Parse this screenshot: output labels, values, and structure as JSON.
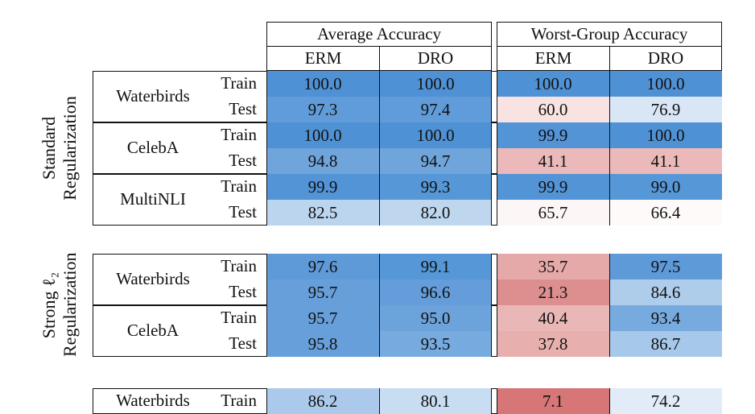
{
  "header": {
    "average_accuracy": "Average Accuracy",
    "worst_group_accuracy": "Worst-Group Accuracy",
    "erm": "ERM",
    "dro": "DRO"
  },
  "groups": [
    {
      "label_line1": "Standard",
      "label_line2": "Regularization",
      "datasets": [
        {
          "name": "Waterbirds",
          "rows": [
            {
              "split": "Train",
              "values": [
                "100.0",
                "100.0",
                "100.0",
                "100.0"
              ],
              "colors": [
                "#4f91d5",
                "#4f91d5",
                "#4f91d5",
                "#4f91d5"
              ]
            },
            {
              "split": "Test",
              "values": [
                "97.3",
                "97.4",
                "60.0",
                "76.9"
              ],
              "colors": [
                "#609cd9",
                "#609cd9",
                "#f8e2e2",
                "#d8e6f6"
              ]
            }
          ]
        },
        {
          "name": "CelebA",
          "rows": [
            {
              "split": "Train",
              "values": [
                "100.0",
                "100.0",
                "99.9",
                "100.0"
              ],
              "colors": [
                "#4f91d5",
                "#4f91d5",
                "#5294d6",
                "#4f91d5"
              ]
            },
            {
              "split": "Test",
              "values": [
                "94.8",
                "94.7",
                "41.1",
                "41.1"
              ],
              "colors": [
                "#70a5dc",
                "#70a5dc",
                "#ebb9b9",
                "#ebb9b9"
              ]
            }
          ]
        },
        {
          "name": "MultiNLI",
          "rows": [
            {
              "split": "Train",
              "values": [
                "99.9",
                "99.3",
                "99.9",
                "99.0"
              ],
              "colors": [
                "#5294d6",
                "#5597d7",
                "#5294d6",
                "#5698d7"
              ]
            },
            {
              "split": "Test",
              "values": [
                "82.5",
                "82.0",
                "65.7",
                "66.4"
              ],
              "colors": [
                "#bcd5ef",
                "#bed7ef",
                "#fdf6f6",
                "#fefafa"
              ]
            }
          ]
        }
      ]
    },
    {
      "label_line1": "Strong ℓ₂",
      "label_line2": "Regularization",
      "datasets": [
        {
          "name": "Waterbirds",
          "rows": [
            {
              "split": "Train",
              "values": [
                "97.6",
                "99.1",
                "35.7",
                "97.5"
              ],
              "colors": [
                "#5e9ad8",
                "#5597d7",
                "#e6a9a9",
                "#5e9ad8"
              ]
            },
            {
              "split": "Test",
              "values": [
                "95.7",
                "96.6",
                "21.3",
                "84.6"
              ],
              "colors": [
                "#679fda",
                "#649dd9",
                "#dd8f8f",
                "#aecdeb"
              ]
            }
          ]
        },
        {
          "name": "CelebA",
          "rows": [
            {
              "split": "Train",
              "values": [
                "95.7",
                "95.0",
                "40.4",
                "93.4"
              ],
              "colors": [
                "#679fda",
                "#6da3db",
                "#eab7b7",
                "#77aade"
              ]
            },
            {
              "split": "Test",
              "values": [
                "95.8",
                "93.5",
                "37.8",
                "86.7"
              ],
              "colors": [
                "#679fda",
                "#77aade",
                "#e8afaf",
                "#a6c8ea"
              ]
            }
          ]
        }
      ]
    },
    {
      "label_line1": "",
      "label_line2": "",
      "datasets": [
        {
          "name": "Waterbirds",
          "rows": [
            {
              "split": "Train",
              "values": [
                "86.2",
                "80.1",
                "7.1",
                "74.2"
              ],
              "colors": [
                "#abcaeb",
                "#c9ddf2",
                "#d67676",
                "#e2ecf8"
              ]
            }
          ]
        }
      ]
    }
  ]
}
